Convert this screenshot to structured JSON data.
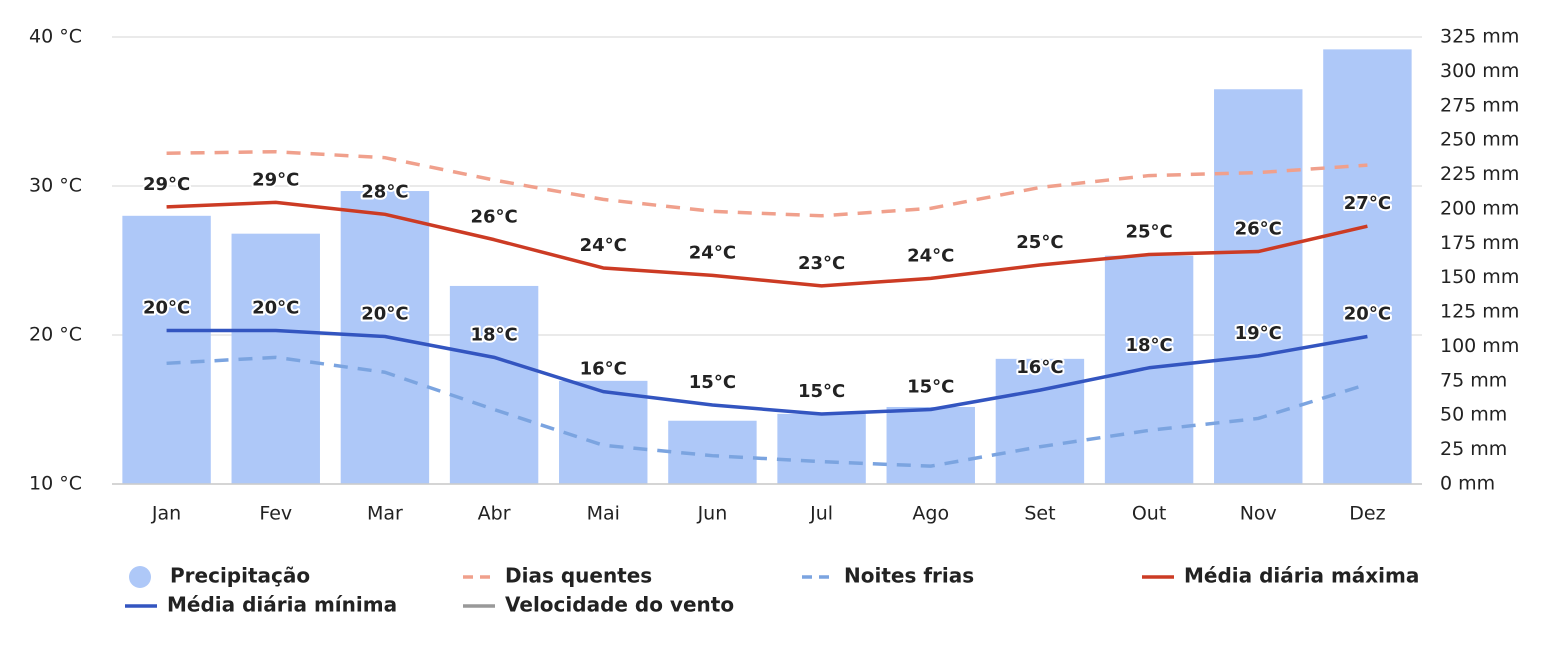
{
  "chart_data": {
    "type": "combo",
    "categories": [
      "Jan",
      "Fev",
      "Mar",
      "Abr",
      "Mai",
      "Jun",
      "Jul",
      "Ago",
      "Set",
      "Out",
      "Nov",
      "Dez"
    ],
    "ylim": [
      10,
      40
    ],
    "yticks": [
      {
        "value": 10,
        "label": "10 °C"
      },
      {
        "value": 20,
        "label": "20 °C"
      },
      {
        "value": 30,
        "label": "30 °C"
      },
      {
        "value": 40,
        "label": "40 °C"
      }
    ],
    "y2lim": [
      0,
      325
    ],
    "y2ticks": [
      {
        "value": 0,
        "label": "0 mm"
      },
      {
        "value": 25,
        "label": "25 mm"
      },
      {
        "value": 50,
        "label": "50 mm"
      },
      {
        "value": 75,
        "label": "75 mm"
      },
      {
        "value": 100,
        "label": "100 mm"
      },
      {
        "value": 125,
        "label": "125 mm"
      },
      {
        "value": 150,
        "label": "150 mm"
      },
      {
        "value": 175,
        "label": "175 mm"
      },
      {
        "value": 200,
        "label": "200 mm"
      },
      {
        "value": 225,
        "label": "225 mm"
      },
      {
        "value": 250,
        "label": "250 mm"
      },
      {
        "value": 275,
        "label": "275 mm"
      },
      {
        "value": 300,
        "label": "300 mm"
      },
      {
        "value": 325,
        "label": "325 mm"
      }
    ],
    "grid": true,
    "series": [
      {
        "name": "Precipitação",
        "type": "bar",
        "axis": "y2",
        "color": "#aec8f8",
        "values": [
          195,
          182,
          213,
          144,
          75,
          46,
          51,
          56,
          91,
          166,
          287,
          316
        ]
      },
      {
        "name": "Dias quentes",
        "type": "line",
        "dashed": true,
        "color": "#f0a08c",
        "values": [
          32.2,
          32.3,
          31.9,
          30.4,
          29.1,
          28.3,
          28.0,
          28.5,
          29.9,
          30.7,
          30.9,
          31.4
        ]
      },
      {
        "name": "Noites frias",
        "type": "line",
        "dashed": true,
        "color": "#7ba4e0",
        "values": [
          18.1,
          18.5,
          17.5,
          15.0,
          12.6,
          11.9,
          11.5,
          11.2,
          12.5,
          13.6,
          14.4,
          16.7
        ]
      },
      {
        "name": "Média diária máxima",
        "type": "line",
        "color": "#cc3b24",
        "values": [
          28.6,
          28.9,
          28.1,
          26.4,
          24.5,
          24.0,
          23.3,
          23.8,
          24.7,
          25.4,
          25.6,
          27.3
        ],
        "value_labels": [
          "29°C",
          "29°C",
          "28°C",
          "26°C",
          "24°C",
          "24°C",
          "23°C",
          "24°C",
          "25°C",
          "25°C",
          "26°C",
          "27°C"
        ]
      },
      {
        "name": "Média diária mínima",
        "type": "line",
        "color": "#3355c0",
        "values": [
          20.3,
          20.3,
          19.9,
          18.5,
          16.2,
          15.3,
          14.7,
          15.0,
          16.3,
          17.8,
          18.6,
          19.9
        ],
        "value_labels": [
          "20°C",
          "20°C",
          "20°C",
          "18°C",
          "16°C",
          "15°C",
          "15°C",
          "15°C",
          "16°C",
          "18°C",
          "19°C",
          "20°C"
        ]
      }
    ],
    "hidden_series": [
      {
        "name": "Velocidade do vento",
        "color": "#999999"
      }
    ]
  }
}
